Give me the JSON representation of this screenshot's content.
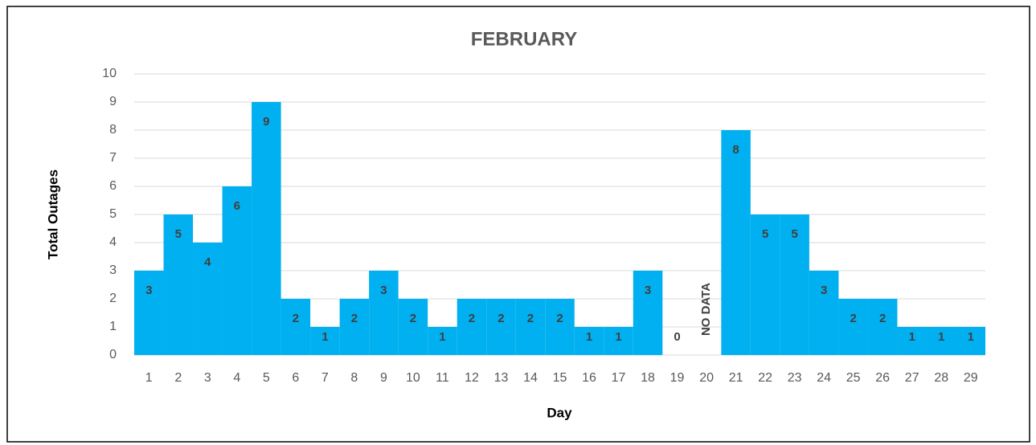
{
  "chart_data": {
    "type": "bar",
    "title": "FEBRUARY",
    "x_label": "Day",
    "y_label": "Total Outages",
    "categories": [
      "1",
      "2",
      "3",
      "4",
      "5",
      "6",
      "7",
      "8",
      "9",
      "10",
      "11",
      "12",
      "13",
      "14",
      "15",
      "16",
      "17",
      "18",
      "19",
      "20",
      "21",
      "22",
      "23",
      "24",
      "25",
      "26",
      "27",
      "28",
      "29"
    ],
    "values": [
      3,
      5,
      4,
      6,
      9,
      2,
      1,
      2,
      3,
      2,
      1,
      2,
      2,
      2,
      2,
      1,
      1,
      3,
      0,
      null,
      8,
      5,
      5,
      3,
      2,
      2,
      1,
      1,
      1
    ],
    "value_labels": [
      "3",
      "5",
      "4",
      "6",
      "9",
      "2",
      "1",
      "2",
      "3",
      "2",
      "1",
      "2",
      "2",
      "2",
      "2",
      "1",
      "1",
      "3",
      "0",
      "NO DATA",
      "8",
      "5",
      "5",
      "3",
      "2",
      "2",
      "1",
      "1",
      "1"
    ],
    "color": "#00b0f0",
    "ylim": [
      0,
      10
    ],
    "yticks": [
      0,
      1,
      2,
      3,
      4,
      5,
      6,
      7,
      8,
      9,
      10
    ],
    "grid": true
  }
}
